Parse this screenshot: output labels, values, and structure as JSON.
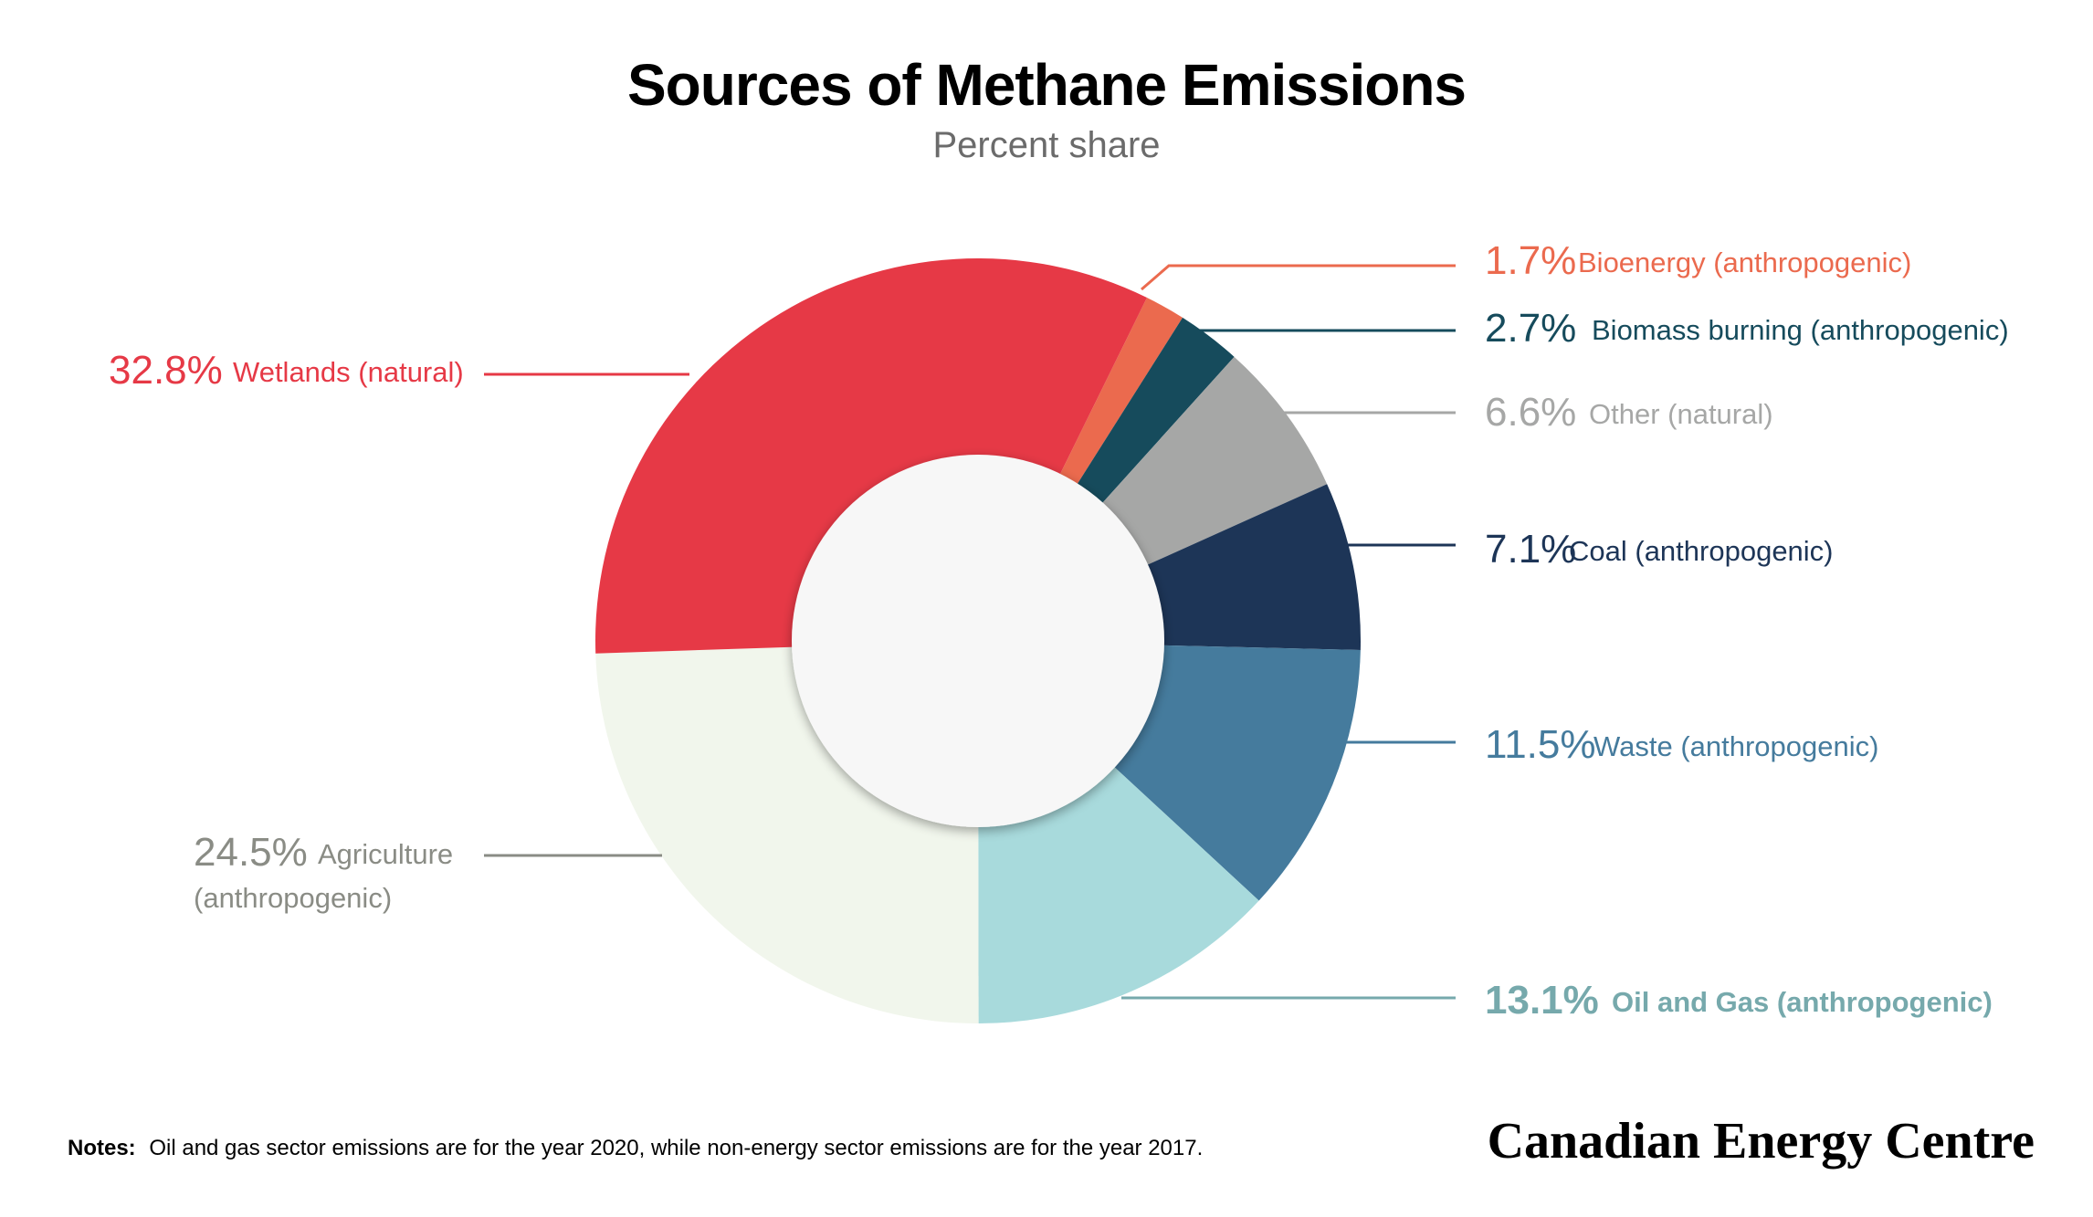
{
  "chart_data": {
    "type": "pie",
    "variant": "donut",
    "title": "Sources of Methane Emissions",
    "subtitle": "Percent share",
    "unit": "%",
    "slices": [
      {
        "label": "Bioenergy (anthropogenic)",
        "pct_text": "1.7%",
        "value": 1.7,
        "color": "#EB6A4E"
      },
      {
        "label": "Biomass burning (anthropogenic)",
        "pct_text": "2.7%",
        "value": 2.7,
        "color": "#164B5C"
      },
      {
        "label": "Other (natural)",
        "pct_text": "6.6%",
        "value": 6.6,
        "color": "#A6A7A6"
      },
      {
        "label": "Coal (anthropogenic)",
        "pct_text": "7.1%",
        "value": 7.1,
        "color": "#1D3557"
      },
      {
        "label": "Waste (anthropogenic)",
        "pct_text": "11.5%",
        "value": 11.5,
        "color": "#457B9D"
      },
      {
        "label": "Oil and Gas (anthropogenic)",
        "pct_text": "13.1%",
        "value": 13.1,
        "color": "#A8DADC",
        "text_color": "#76A9AC",
        "emphasis": true
      },
      {
        "label": "Agriculture (anthropogenic)",
        "label_lines": [
          "Agriculture",
          "(anthropogenic)"
        ],
        "pct_text": "24.5%",
        "value": 24.5,
        "color": "#F1F6EC",
        "text_color": "#8A8C85"
      },
      {
        "label": "Wetlands (natural)",
        "pct_text": "32.8%",
        "value": 32.8,
        "color": "#E63946"
      }
    ]
  },
  "notes": {
    "prefix": "Notes:",
    "text": "Oil and gas sector emissions are for the year 2020, while non-energy sector emissions are for the year 2017."
  },
  "brand": "Canadian Energy Centre"
}
